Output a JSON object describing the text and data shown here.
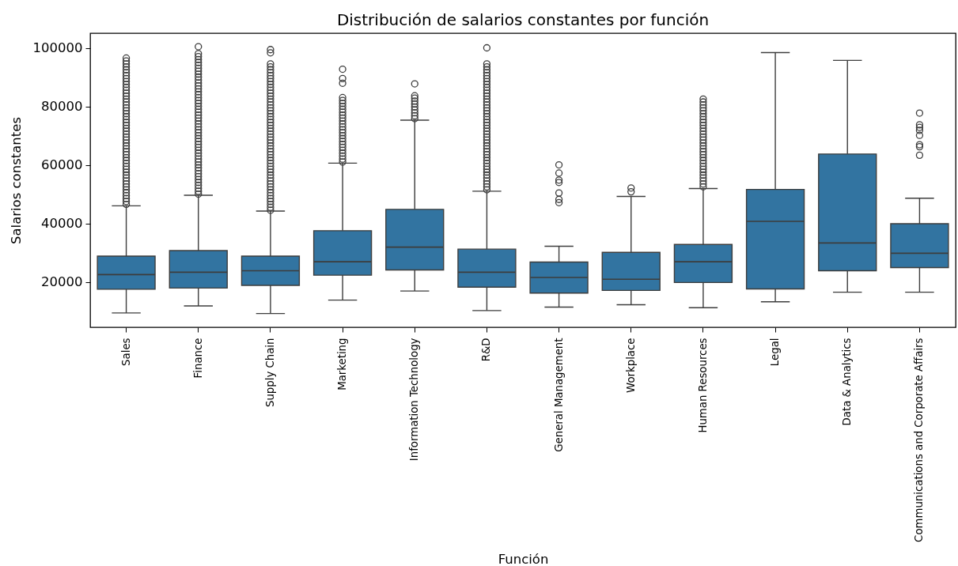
{
  "chart_data": {
    "type": "box",
    "title": "Distribución de salarios constantes por función",
    "xlabel": "Función",
    "ylabel": "Salarios constantes",
    "categories": [
      "Sales",
      "Finance",
      "Supply Chain",
      "Marketing",
      "Information Technology",
      "R&D",
      "General Management",
      "Workplace",
      "Human Resources",
      "Legal",
      "Data & Analytics",
      "Communications and Corporate Affairs"
    ],
    "ylim": [
      4500,
      105000
    ],
    "yticks": [
      20000,
      40000,
      60000,
      80000,
      100000
    ],
    "series": [
      {
        "color": "#3274a1",
        "boxes": [
          {
            "low": 9400,
            "q1": 17500,
            "median": 22500,
            "q3": 28800,
            "high": 46000,
            "outliers": [
              46500,
              47500,
              48500,
              49500,
              50500,
              51500,
              52500,
              53500,
              54500,
              55500,
              56500,
              57500,
              58500,
              59500,
              60500,
              61500,
              62500,
              63500,
              64500,
              65500,
              66500,
              67500,
              68500,
              69500,
              70500,
              71500,
              72500,
              73500,
              74500,
              75500,
              76500,
              77500,
              78500,
              79500,
              80500,
              81500,
              82500,
              83500,
              84500,
              85500,
              86500,
              87500,
              88500,
              89500,
              90500,
              91500,
              92500,
              93500,
              94500,
              95500,
              96500
            ]
          },
          {
            "low": 11800,
            "q1": 17900,
            "median": 23300,
            "q3": 30700,
            "high": 49600,
            "outliers": [
              50000,
              51000,
              52000,
              53000,
              54000,
              55000,
              56000,
              57000,
              58000,
              59000,
              60000,
              61000,
              62000,
              63000,
              64000,
              65000,
              66000,
              67000,
              68000,
              69000,
              70000,
              71000,
              72000,
              73000,
              74000,
              75000,
              76000,
              77000,
              78000,
              79000,
              80000,
              81000,
              82000,
              83000,
              84000,
              85000,
              86000,
              87000,
              88000,
              89000,
              90000,
              91000,
              92000,
              93000,
              94000,
              95000,
              96000,
              97000,
              98000,
              100400
            ]
          },
          {
            "low": 9200,
            "q1": 18800,
            "median": 23800,
            "q3": 28800,
            "high": 44200,
            "outliers": [
              44500,
              45500,
              46500,
              47500,
              48500,
              49500,
              50500,
              51500,
              52500,
              53500,
              54500,
              55500,
              56500,
              57500,
              58500,
              59500,
              60500,
              61500,
              62500,
              63500,
              64500,
              65500,
              66500,
              67500,
              68500,
              69500,
              70500,
              71500,
              72500,
              73500,
              74500,
              75500,
              76500,
              77500,
              78500,
              79500,
              80500,
              81500,
              82500,
              83500,
              84500,
              85500,
              86500,
              87500,
              88500,
              89500,
              90500,
              91500,
              92500,
              93500,
              94500,
              98300,
              99400
            ]
          },
          {
            "low": 13800,
            "q1": 22300,
            "median": 26900,
            "q3": 37500,
            "high": 60600,
            "outliers": [
              61000,
              62000,
              63000,
              64000,
              65000,
              66000,
              67000,
              68000,
              69000,
              70000,
              71000,
              72000,
              73000,
              74000,
              75000,
              76000,
              77000,
              78000,
              79000,
              80000,
              81000,
              82000,
              83000,
              87900,
              89500,
              92700
            ]
          },
          {
            "low": 16900,
            "q1": 24100,
            "median": 31900,
            "q3": 44800,
            "high": 75300,
            "outliers": [
              75800,
              76800,
              77800,
              78800,
              79800,
              80800,
              81800,
              82800,
              83600,
              87700
            ]
          },
          {
            "low": 10200,
            "q1": 18200,
            "median": 23300,
            "q3": 31200,
            "high": 51000,
            "outliers": [
              51500,
              52500,
              53500,
              54500,
              55500,
              56500,
              57500,
              58500,
              59500,
              60500,
              61500,
              62500,
              63500,
              64500,
              65500,
              66500,
              67500,
              68500,
              69500,
              70500,
              71500,
              72500,
              73500,
              74500,
              75500,
              76500,
              77500,
              78500,
              79500,
              80500,
              81500,
              82500,
              83500,
              84500,
              85500,
              86500,
              87500,
              88500,
              89500,
              90500,
              91500,
              92500,
              93500,
              94500,
              100000
            ]
          },
          {
            "low": 11400,
            "q1": 16200,
            "median": 21500,
            "q3": 26800,
            "high": 32200,
            "outliers": [
              47100,
              48200,
              50400,
              54000,
              54800,
              57200,
              60000
            ]
          },
          {
            "low": 12200,
            "q1": 17100,
            "median": 20900,
            "q3": 30100,
            "high": 49200,
            "outliers": [
              50800,
              52100
            ]
          },
          {
            "low": 11200,
            "q1": 19800,
            "median": 26900,
            "q3": 32800,
            "high": 51900,
            "outliers": [
              52500,
              53500,
              54500,
              55500,
              56500,
              57500,
              58500,
              59500,
              60500,
              61500,
              62500,
              63500,
              64500,
              65500,
              66500,
              67500,
              68500,
              69500,
              70500,
              71500,
              72500,
              73500,
              74500,
              75500,
              76500,
              77500,
              78500,
              79500,
              80500,
              81500,
              82500
            ]
          },
          {
            "low": 13200,
            "q1": 17600,
            "median": 40700,
            "q3": 51600,
            "high": 98400
          },
          {
            "low": 16500,
            "q1": 23800,
            "median": 33300,
            "q3": 63700,
            "high": 95700
          },
          {
            "low": 16500,
            "q1": 24900,
            "median": 29800,
            "q3": 39900,
            "high": 48600,
            "outliers": [
              63300,
              66200,
              66900,
              70100,
              71800,
              72800,
              73700,
              77700
            ]
          }
        ]
      }
    ]
  }
}
